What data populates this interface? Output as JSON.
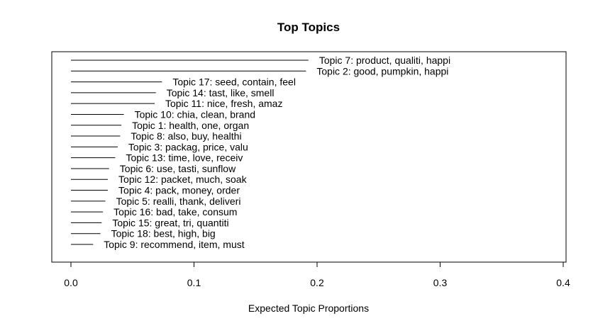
{
  "chart_data": {
    "type": "bar",
    "orientation": "horizontal",
    "title": "Top Topics",
    "xlabel": "Expected Topic Proportions",
    "ylabel": "",
    "xlim": [
      0.0,
      0.4
    ],
    "xticks": [
      "0.0",
      "0.1",
      "0.2",
      "0.3",
      "0.4"
    ],
    "xtick_values": [
      0.0,
      0.1,
      0.2,
      0.3,
      0.4
    ],
    "grid": false,
    "categories": [
      "Topic 7: product, qualiti, happi",
      "Topic 2: good, pumpkin, happi",
      "Topic 17: seed, contain, feel",
      "Topic 14: tast, like, smell",
      "Topic 11: nice, fresh, amaz",
      "Topic 10: chia, clean, brand",
      "Topic 1: health, one, organ",
      "Topic 8: also, buy, healthi",
      "Topic 3: packag, price, valu",
      "Topic 13: time, love, receiv",
      "Topic 6: use, tasti, sunflow",
      "Topic 12: packet, much, soak",
      "Topic 4: pack, money, order",
      "Topic 5: realli, thank, deliveri",
      "Topic 16: bad, take, consum",
      "Topic 15: great, tri, quantiti",
      "Topic 18: best, high, big",
      "Topic 9: recommend, item, must"
    ],
    "values": [
      0.193,
      0.191,
      0.074,
      0.069,
      0.068,
      0.043,
      0.041,
      0.04,
      0.038,
      0.036,
      0.031,
      0.03,
      0.03,
      0.028,
      0.026,
      0.025,
      0.024,
      0.018
    ],
    "colors": {
      "bar": "#000000",
      "frame": "#000000",
      "text": "#000000",
      "background": "#ffffff"
    }
  }
}
